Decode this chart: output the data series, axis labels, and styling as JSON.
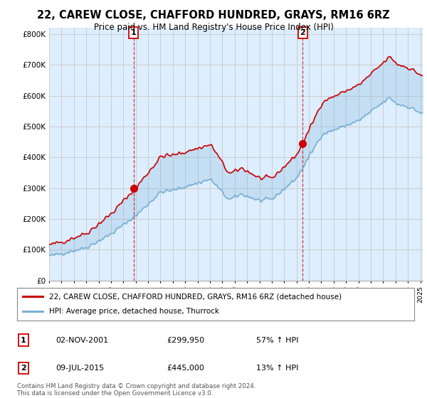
{
  "title": "22, CAREW CLOSE, CHAFFORD HUNDRED, GRAYS, RM16 6RZ",
  "subtitle": "Price paid vs. HM Land Registry's House Price Index (HPI)",
  "ylim": [
    0,
    820000
  ],
  "yticks": [
    0,
    100000,
    200000,
    300000,
    400000,
    500000,
    600000,
    700000,
    800000
  ],
  "ytick_labels": [
    "£0",
    "£100K",
    "£200K",
    "£300K",
    "£400K",
    "£500K",
    "£600K",
    "£700K",
    "£800K"
  ],
  "sale1_year": 2001.833,
  "sale1_price": 299950,
  "sale2_year": 2015.5,
  "sale2_price": 445000,
  "red_line_color": "#cc0000",
  "blue_line_color": "#7ab0d4",
  "fill_color": "#ddeeff",
  "legend_line1": "22, CAREW CLOSE, CHAFFORD HUNDRED, GRAYS, RM16 6RZ (detached house)",
  "legend_line2": "HPI: Average price, detached house, Thurrock",
  "table_row1": [
    "1",
    "02-NOV-2001",
    "£299,950",
    "57% ↑ HPI"
  ],
  "table_row2": [
    "2",
    "09-JUL-2015",
    "£445,000",
    "13% ↑ HPI"
  ],
  "footnote": "Contains HM Land Registry data © Crown copyright and database right 2024.\nThis data is licensed under the Open Government Licence v3.0.",
  "background_color": "#ffffff",
  "grid_color": "#cccccc",
  "xlim_start": 1995.0,
  "xlim_end": 2025.2
}
